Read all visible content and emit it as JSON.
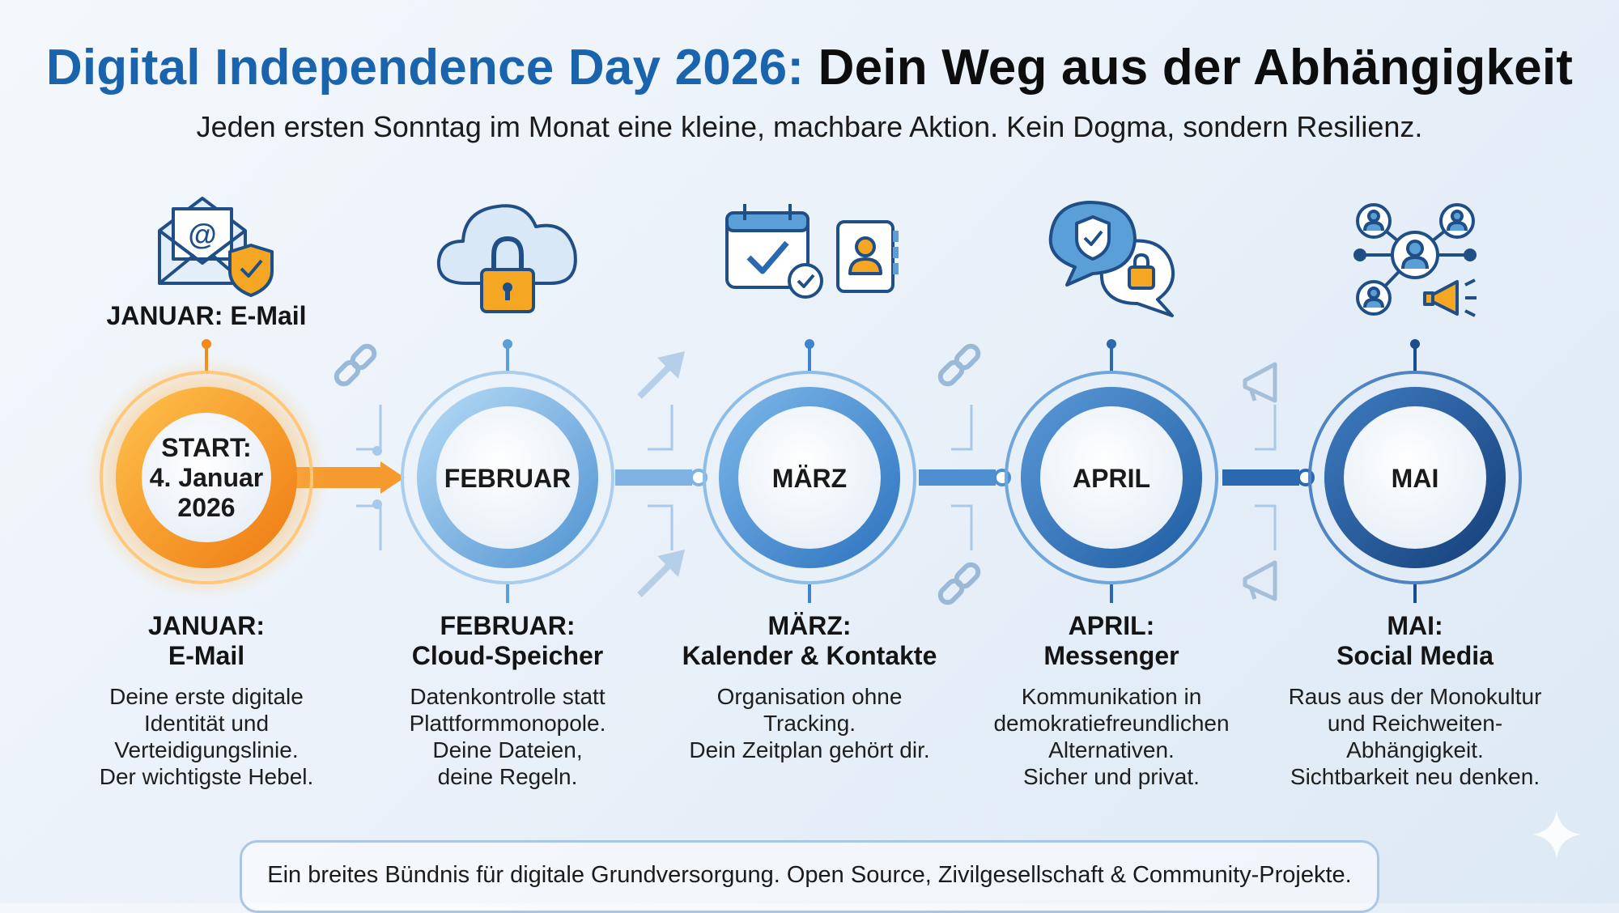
{
  "header": {
    "title_accent": "Digital Independence Day 2026:",
    "title_rest": "Dein Weg aus der Abhängigkeit",
    "subtitle": "Jeden ersten Sonntag im Monat eine kleine, machbare Aktion. Kein Dogma, sondern Resilienz."
  },
  "start_caption": "JANUAR: E-Mail",
  "nodes": [
    {
      "label_lines": [
        "START:",
        "4. Januar",
        "2026"
      ],
      "accent": "#f28a1a",
      "icon": "envelope-shield-icon"
    },
    {
      "label": "FEBRUAR",
      "accent": "#5b9fd9",
      "icon": "cloud-lock-icon"
    },
    {
      "label": "MÄRZ",
      "accent": "#3d84cc",
      "icon": "calendar-contacts-icon"
    },
    {
      "label": "APRIL",
      "accent": "#2a68b0",
      "icon": "chat-shield-lock-icon"
    },
    {
      "label": "MAI",
      "accent": "#1a4d8e",
      "icon": "social-network-megaphone-icon"
    }
  ],
  "columns": [
    {
      "month": "JANUAR:",
      "topic": "E-Mail",
      "desc": [
        "Deine erste digitale",
        "Identität und",
        "Verteidigungslinie.",
        "Der wichtigste Hebel."
      ]
    },
    {
      "month": "FEBRUAR:",
      "topic": "Cloud-Speicher",
      "desc": [
        "Datenkontrolle statt",
        "Plattformmonopole.",
        "Deine Dateien,",
        "deine Regeln."
      ]
    },
    {
      "month": "MÄRZ:",
      "topic": "Kalender & Kontakte",
      "desc": [
        "Organisation ohne",
        "Tracking.",
        "Dein Zeitplan gehört dir."
      ]
    },
    {
      "month": "APRIL:",
      "topic": "Messenger",
      "desc": [
        "Kommunikation in",
        "demokratiefreundlichen",
        "Alternativen.",
        "Sicher und privat."
      ]
    },
    {
      "month": "MAI:",
      "topic": "Social Media",
      "desc": [
        "Raus aus der Monokultur",
        "und Reichweiten-",
        "Abhängigkeit.",
        "Sichtbarkeit neu denken."
      ]
    }
  ],
  "connector_icons": [
    "broken-link-icon",
    "arrow-icon",
    "broken-link-icon",
    "megaphone-icon"
  ],
  "footer": {
    "text": "Ein breites Bündnis für digitale Grundversorgung. Open Source, Zivilgesellschaft & Community-Projekte."
  },
  "colors": {
    "title_blue": "#1a63ad",
    "orange": "#f28a1a",
    "light_blue": "#8fc0ea",
    "dark_blue": "#1a4d8e"
  }
}
